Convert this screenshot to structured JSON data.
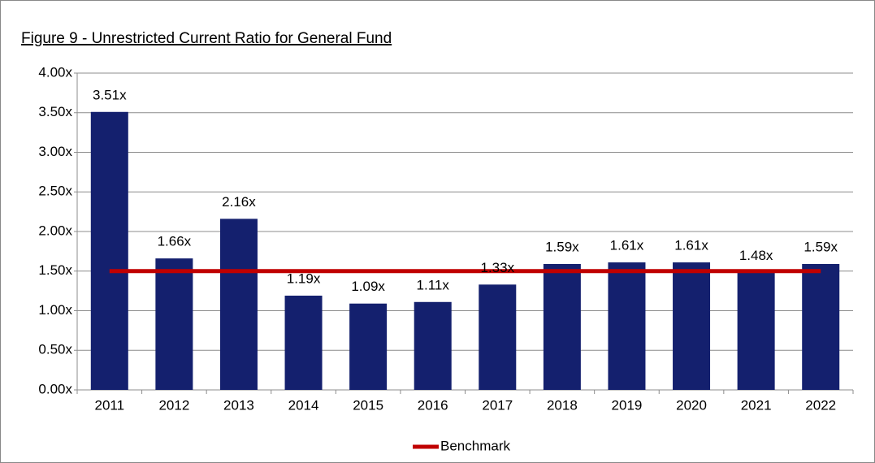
{
  "chart_data": {
    "type": "bar",
    "title": "Figure 9 - Unrestricted Current Ratio for General Fund",
    "categories": [
      "2011",
      "2012",
      "2013",
      "2014",
      "2015",
      "2016",
      "2017",
      "2018",
      "2019",
      "2020",
      "2021",
      "2022"
    ],
    "values": [
      3.51,
      1.66,
      2.16,
      1.19,
      1.09,
      1.11,
      1.33,
      1.59,
      1.61,
      1.61,
      1.48,
      1.59
    ],
    "value_labels": [
      "3.51x",
      "1.66x",
      "2.16x",
      "1.19x",
      "1.09x",
      "1.11x",
      "1.33x",
      "1.59x",
      "1.61x",
      "1.61x",
      "1.48x",
      "1.59x"
    ],
    "color": "#14206e",
    "lines": [
      {
        "name": "Benchmark",
        "color": "#c00000",
        "values": [
          1.5,
          1.5,
          1.5,
          1.5,
          1.5,
          1.5,
          1.5,
          1.5,
          1.5,
          1.5,
          1.5,
          1.5
        ]
      }
    ],
    "ylim": [
      0,
      4
    ],
    "yticks": [
      {
        "value": 0,
        "label": "0.00x"
      },
      {
        "value": 0.5,
        "label": "0.50x"
      },
      {
        "value": 1,
        "label": "1.00x"
      },
      {
        "value": 1.5,
        "label": "1.50x"
      },
      {
        "value": 2,
        "label": "2.00x"
      },
      {
        "value": 2.5,
        "label": "2.50x"
      },
      {
        "value": 3,
        "label": "3.00x"
      },
      {
        "value": 3.5,
        "label": "3.50x"
      },
      {
        "value": 4,
        "label": "4.00x"
      }
    ],
    "grid": true,
    "legend": "bottom"
  }
}
